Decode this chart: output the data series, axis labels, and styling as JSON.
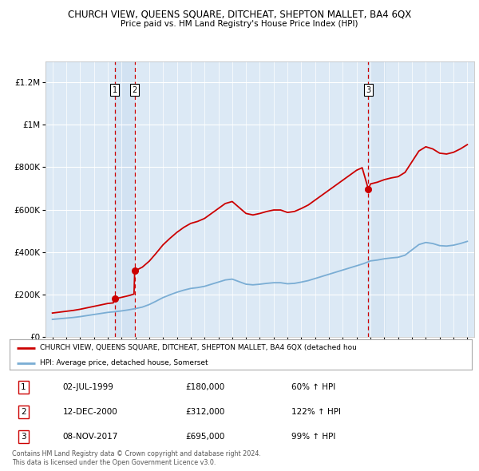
{
  "title": "CHURCH VIEW, QUEENS SQUARE, DITCHEAT, SHEPTON MALLET, BA4 6QX",
  "subtitle": "Price paid vs. HM Land Registry's House Price Index (HPI)",
  "red_line_label": "CHURCH VIEW, QUEENS SQUARE, DITCHEAT, SHEPTON MALLET, BA4 6QX (detached hou",
  "blue_line_label": "HPI: Average price, detached house, Somerset",
  "footnote1": "Contains HM Land Registry data © Crown copyright and database right 2024.",
  "footnote2": "This data is licensed under the Open Government Licence v3.0.",
  "purchases": [
    {
      "id": 1,
      "date": "02-JUL-1999",
      "price": 180000,
      "pct": "60%",
      "dir": "↑",
      "year": 1999.5
    },
    {
      "id": 2,
      "date": "12-DEC-2000",
      "price": 312000,
      "pct": "122%",
      "dir": "↑",
      "year": 2000.95
    },
    {
      "id": 3,
      "date": "08-NOV-2017",
      "price": 695000,
      "pct": "99%",
      "dir": "↑",
      "year": 2017.85
    }
  ],
  "red_color": "#cc0000",
  "blue_color": "#7aadd4",
  "background_color": "#dce9f5",
  "grid_color": "#ffffff",
  "shade_color": "#c5d9ee",
  "ylim": [
    0,
    1300000
  ],
  "yticks": [
    0,
    200000,
    400000,
    600000,
    800000,
    1000000,
    1200000
  ],
  "xlim_start": 1994.5,
  "xlim_end": 2025.5
}
